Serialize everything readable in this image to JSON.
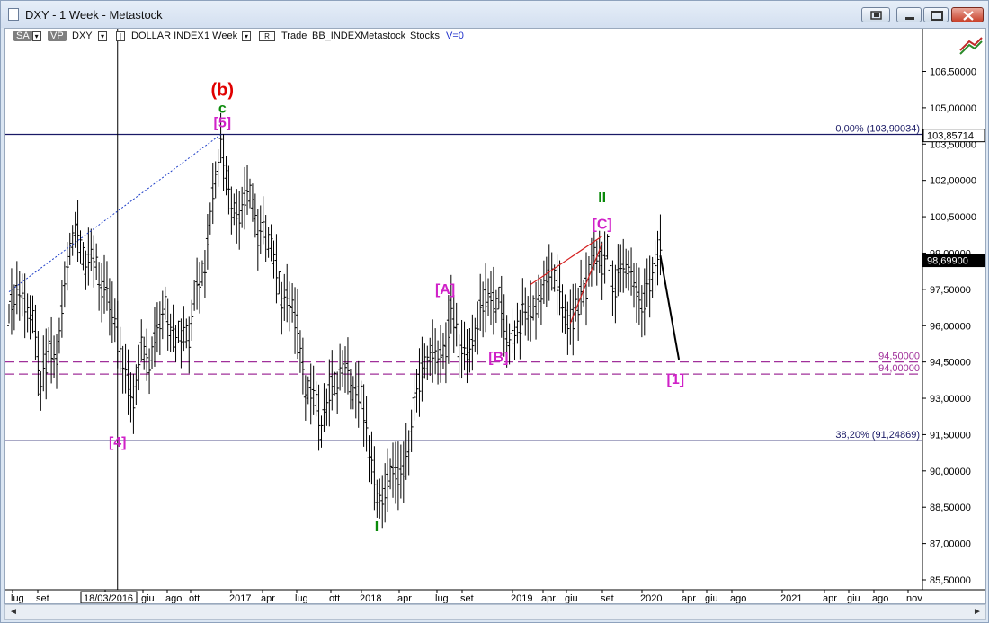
{
  "window": {
    "title": "DXY - 1 Week - Metastock"
  },
  "toolbar": {
    "sa_label": "SA",
    "vp_label": "VP",
    "symbol": "DXY",
    "description": "DOLLAR INDEX",
    "period": "1 Week",
    "r_label": "R",
    "trade_label": "Trade",
    "exchange": "BB_INDEX",
    "source": "Metastock",
    "category": "Stocks",
    "volume_label": "V=0"
  },
  "chart_data": {
    "type": "candlestick",
    "title": "DXY - 1 Week",
    "y_axis": {
      "position": "right",
      "min": 85.5,
      "max": 106.5,
      "ticks": [
        "106,50000",
        "105,00000",
        "103,50000",
        "102,00000",
        "100,50000",
        "99,00000",
        "97,50000",
        "96,00000",
        "94,50000",
        "93,00000",
        "91,50000",
        "90,00000",
        "88,50000",
        "87,00000",
        "85,50000"
      ]
    },
    "x_axis": {
      "labels": [
        "lug",
        "set",
        "18/03/2016",
        "giu",
        "ago",
        "ott",
        "2017",
        "apr",
        "lug",
        "ott",
        "2018",
        "apr",
        "lug",
        "set",
        "2019",
        "apr",
        "giu",
        "set",
        "2020",
        "apr",
        "giu",
        "ago",
        "2021",
        "apr",
        "giu",
        "ago",
        "nov"
      ]
    },
    "price_tags": [
      {
        "label": "103,85714",
        "value": 103.85714
      },
      {
        "label": "98,69900",
        "value": 98.699
      }
    ],
    "horizontal_lines": [
      {
        "label": "0,00% (103,90034)",
        "value": 103.90034,
        "color": "#1a1a66",
        "style": "solid"
      },
      {
        "label": "38,20% (91,24869)",
        "value": 91.24869,
        "color": "#1a1a66",
        "style": "solid"
      },
      {
        "label": "94,50000",
        "value": 94.5,
        "color": "#a0309a",
        "style": "dashed"
      },
      {
        "label": "94,00000",
        "value": 94.0,
        "color": "#a0309a",
        "style": "dashed"
      }
    ],
    "wave_labels": [
      {
        "text": "(b)",
        "color": "#e00000",
        "x": "2016-12-20",
        "y": 105.5
      },
      {
        "text": "c",
        "color": "#0a8a0a",
        "x": "2016-12-20",
        "y": 104.8
      },
      {
        "text": "[5]",
        "color": "#d021c8",
        "x": "2016-12-20",
        "y": 104.2
      },
      {
        "text": "[4]",
        "color": "#d021c8",
        "x": "2016-03-18",
        "y": 91.0
      },
      {
        "text": "I",
        "color": "#0a8a0a",
        "x": "2018-02-01",
        "y": 87.5
      },
      {
        "text": "[A]",
        "color": "#d021c8",
        "x": "2018-08-01",
        "y": 97.3
      },
      {
        "text": "[B]",
        "color": "#d021c8",
        "x": "2018-12-20",
        "y": 94.5
      },
      {
        "text": "II",
        "color": "#0a8a0a",
        "x": "2019-09-20",
        "y": 101.1
      },
      {
        "text": "[C]",
        "color": "#d021c8",
        "x": "2019-09-20",
        "y": 100.0
      },
      {
        "text": "[1]",
        "color": "#d021c8",
        "x": "2020-04-01",
        "y": 93.6
      }
    ],
    "series": [
      {
        "name": "DXY",
        "type": "path",
        "points": [
          [
            "2015-06-05",
            96.5
          ],
          [
            "2015-06-26",
            97.6
          ],
          [
            "2015-07-17",
            97.0
          ],
          [
            "2015-08-07",
            96.2
          ],
          [
            "2015-08-28",
            93.5
          ],
          [
            "2015-09-18",
            95.0
          ],
          [
            "2015-10-09",
            94.5
          ],
          [
            "2015-10-30",
            97.6
          ],
          [
            "2015-11-20",
            99.6
          ],
          [
            "2015-12-04",
            100.2
          ],
          [
            "2015-12-25",
            98.2
          ],
          [
            "2016-01-15",
            99.0
          ],
          [
            "2016-02-05",
            97.5
          ],
          [
            "2016-02-26",
            97.0
          ],
          [
            "2016-03-18",
            95.5
          ],
          [
            "2016-04-08",
            94.0
          ],
          [
            "2016-04-29",
            93.0
          ],
          [
            "2016-05-20",
            95.5
          ],
          [
            "2016-06-10",
            94.0
          ],
          [
            "2016-07-01",
            96.0
          ],
          [
            "2016-07-22",
            97.0
          ],
          [
            "2016-08-12",
            95.5
          ],
          [
            "2016-09-02",
            95.8
          ],
          [
            "2016-09-23",
            95.5
          ],
          [
            "2016-10-14",
            97.8
          ],
          [
            "2016-11-04",
            98.5
          ],
          [
            "2016-11-25",
            101.5
          ],
          [
            "2016-12-16",
            103.5
          ],
          [
            "2016-12-30",
            102.5
          ],
          [
            "2017-01-20",
            100.6
          ],
          [
            "2017-02-10",
            100.8
          ],
          [
            "2017-03-03",
            101.5
          ],
          [
            "2017-03-24",
            99.5
          ],
          [
            "2017-04-14",
            100.0
          ],
          [
            "2017-05-05",
            98.8
          ],
          [
            "2017-05-26",
            97.2
          ],
          [
            "2017-06-16",
            97.0
          ],
          [
            "2017-07-07",
            96.0
          ],
          [
            "2017-07-28",
            93.5
          ],
          [
            "2017-08-18",
            93.4
          ],
          [
            "2017-09-08",
            91.4
          ],
          [
            "2017-09-29",
            93.3
          ],
          [
            "2017-10-20",
            93.7
          ],
          [
            "2017-11-10",
            94.5
          ],
          [
            "2017-12-01",
            93.0
          ],
          [
            "2017-12-22",
            93.3
          ],
          [
            "2018-01-12",
            90.9
          ],
          [
            "2018-02-02",
            89.0
          ],
          [
            "2018-02-16",
            88.5
          ],
          [
            "2018-03-09",
            90.0
          ],
          [
            "2018-03-30",
            89.7
          ],
          [
            "2018-04-20",
            90.5
          ],
          [
            "2018-05-11",
            92.8
          ],
          [
            "2018-06-01",
            94.0
          ],
          [
            "2018-06-22",
            94.7
          ],
          [
            "2018-07-13",
            94.9
          ],
          [
            "2018-08-03",
            95.2
          ],
          [
            "2018-08-17",
            96.8
          ],
          [
            "2018-09-07",
            95.2
          ],
          [
            "2018-09-28",
            94.5
          ],
          [
            "2018-10-19",
            95.7
          ],
          [
            "2018-11-09",
            97.0
          ],
          [
            "2018-11-30",
            97.0
          ],
          [
            "2018-12-21",
            97.1
          ],
          [
            "2019-01-11",
            95.5
          ],
          [
            "2019-02-01",
            95.6
          ],
          [
            "2019-02-22",
            96.4
          ],
          [
            "2019-03-15",
            96.5
          ],
          [
            "2019-04-05",
            97.0
          ],
          [
            "2019-04-26",
            98.0
          ],
          [
            "2019-05-17",
            97.8
          ],
          [
            "2019-06-07",
            96.8
          ],
          [
            "2019-06-28",
            96.1
          ],
          [
            "2019-07-19",
            96.9
          ],
          [
            "2019-08-09",
            97.6
          ],
          [
            "2019-08-30",
            98.9
          ],
          [
            "2019-09-20",
            98.5
          ],
          [
            "2019-10-04",
            99.3
          ],
          [
            "2019-10-18",
            97.3
          ],
          [
            "2019-11-08",
            98.3
          ],
          [
            "2019-11-29",
            98.3
          ],
          [
            "2019-12-20",
            97.7
          ],
          [
            "2020-01-03",
            96.8
          ],
          [
            "2020-01-24",
            97.9
          ],
          [
            "2020-02-14",
            99.1
          ],
          [
            "2020-02-21",
            99.3
          ]
        ]
      }
    ],
    "annotations": [
      {
        "type": "projection",
        "from": [
          "2020-02-21",
          98.9
        ],
        "to": [
          "2020-04-10",
          94.6
        ],
        "color": "#000000"
      },
      {
        "type": "dotted-trendline",
        "from": [
          "2015-06-05",
          97.4
        ],
        "to": [
          "2016-12-16",
          103.9
        ],
        "color": "#1e3ec8"
      },
      {
        "type": "channel",
        "color": "#d41e1e",
        "upper": [
          [
            "2019-03-15",
            97.7
          ],
          [
            "2019-09-20",
            99.7
          ]
        ],
        "lower": [
          [
            "2019-06-28",
            96.1
          ],
          [
            "2019-09-20",
            99.4
          ]
        ]
      },
      {
        "type": "vertical-line",
        "x": "2016-03-18",
        "color": "#000000"
      }
    ]
  }
}
